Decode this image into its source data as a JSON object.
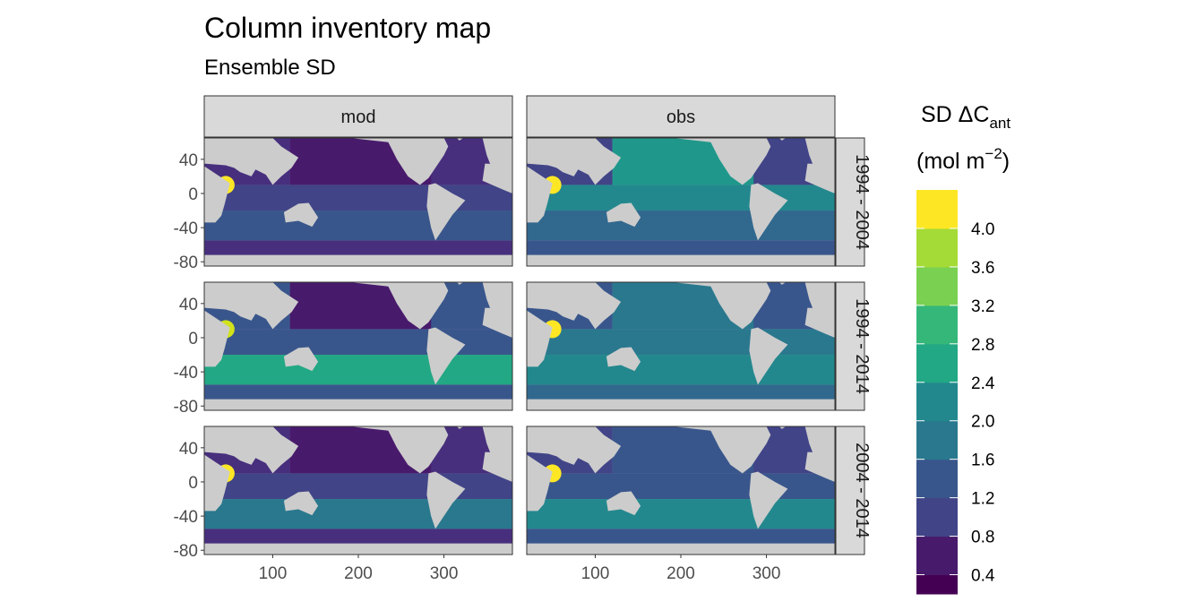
{
  "title": "Column inventory map",
  "subtitle": "Ensemble SD",
  "colors": {
    "land": "#cccccc",
    "strip_bg": "#d9d9d9",
    "panel_border": "#333333",
    "viridis": [
      "#440154",
      "#481a6c",
      "#472f7d",
      "#414487",
      "#39568c",
      "#31688e",
      "#2a788e",
      "#23888e",
      "#1f988b",
      "#22a884",
      "#35b779",
      "#54c568",
      "#7ad151",
      "#a5db36",
      "#d2e21b",
      "#fde725"
    ]
  },
  "legend": {
    "title_main": "SD ΔC",
    "title_sub": "ant",
    "units_pre": "(mol m",
    "units_exp": "−2",
    "units_post": ")",
    "ticks": [
      "4.0",
      "3.6",
      "3.2",
      "2.8",
      "2.4",
      "2.0",
      "1.6",
      "1.2",
      "0.8",
      "0.4"
    ]
  },
  "chart_data": {
    "type": "heatmap",
    "title": "Column inventory map",
    "subtitle": "Ensemble SD",
    "columns": [
      "mod",
      "obs"
    ],
    "rows": [
      "1994 - 2004",
      "1994 - 2014",
      "2004 - 2014"
    ],
    "x_ticks": [
      "100",
      "200",
      "300"
    ],
    "x_tick_values": [
      100,
      200,
      300
    ],
    "y_ticks": [
      "40",
      "0",
      "-40",
      "-80"
    ],
    "y_tick_values": [
      40,
      0,
      -40,
      -80
    ],
    "xlim": [
      20,
      380
    ],
    "ylim": [
      -85,
      65
    ],
    "color_scale": {
      "breaks": [
        0.4,
        0.8,
        1.2,
        1.6,
        2.0,
        2.4,
        2.8,
        3.2,
        3.6,
        4.0
      ],
      "min": 0.2,
      "max": 4.4
    },
    "panels": [
      {
        "column": "mod",
        "row": "1994 - 2004",
        "north_pacific": 0.5,
        "north_atlantic": 0.8,
        "tropics": 1.0,
        "southern_ocean": 1.3,
        "far_south": 0.9,
        "hotspot": 4.2
      },
      {
        "column": "obs",
        "row": "1994 - 2004",
        "north_pacific": 2.4,
        "north_atlantic": 1.0,
        "tropics": 2.2,
        "southern_ocean": 1.7,
        "far_south": 1.3,
        "hotspot": 4.3
      },
      {
        "column": "mod",
        "row": "1994 - 2014",
        "north_pacific": 0.6,
        "north_atlantic": 1.3,
        "tropics": 1.5,
        "southern_ocean": 2.6,
        "far_south": 1.4,
        "hotspot": 4.0
      },
      {
        "column": "obs",
        "row": "1994 - 2014",
        "north_pacific": 2.0,
        "north_atlantic": 1.5,
        "tropics": 2.0,
        "southern_ocean": 2.2,
        "far_south": 1.7,
        "hotspot": 4.3
      },
      {
        "column": "mod",
        "row": "2004 - 2014",
        "north_pacific": 0.5,
        "north_atlantic": 0.9,
        "tropics": 1.0,
        "southern_ocean": 1.8,
        "far_south": 0.9,
        "hotspot": 4.2
      },
      {
        "column": "obs",
        "row": "2004 - 2014",
        "north_pacific": 1.4,
        "north_atlantic": 1.1,
        "tropics": 1.5,
        "southern_ocean": 2.2,
        "far_south": 1.4,
        "hotspot": 4.3
      }
    ]
  }
}
